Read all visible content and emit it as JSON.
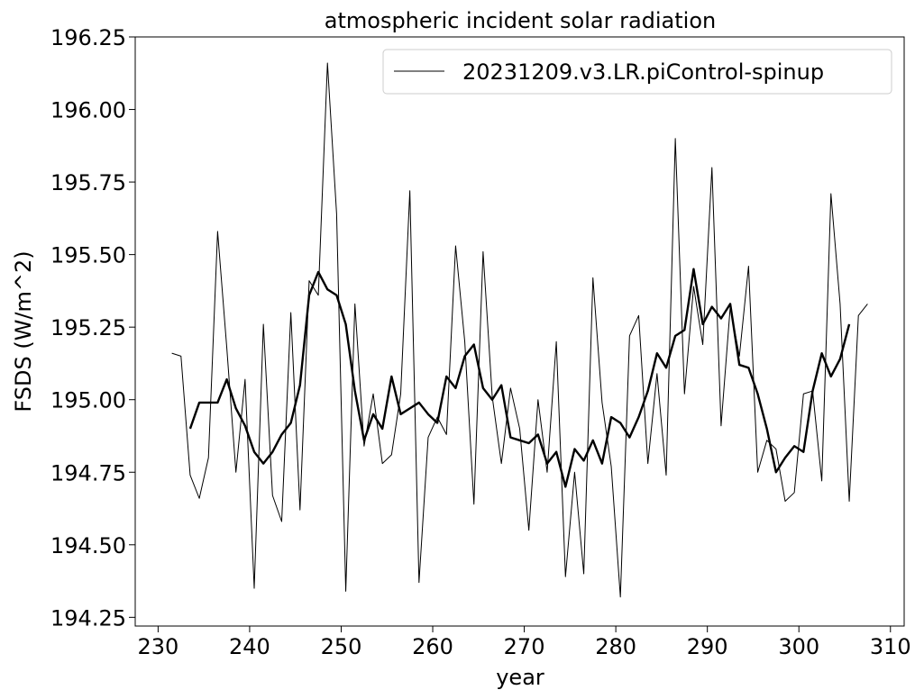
{
  "chart_data": {
    "type": "line",
    "title": "atmospheric incident solar radiation",
    "xlabel": "year",
    "ylabel": "FSDS (W/m^2)",
    "xlim": [
      227.5,
      311.5
    ],
    "ylim": [
      194.22,
      196.25
    ],
    "xticks": [
      230,
      240,
      250,
      260,
      270,
      280,
      290,
      300,
      310
    ],
    "yticks": [
      194.25,
      194.5,
      194.75,
      195.0,
      195.25,
      195.5,
      195.75,
      196.0,
      196.25
    ],
    "ytick_labels": [
      "194.25",
      "194.50",
      "194.75",
      "195.00",
      "195.25",
      "195.50",
      "195.75",
      "196.00",
      "196.25"
    ],
    "grid": false,
    "legend_position": "top-right",
    "legend": [
      "20231209.v3.LR.piControl-spinup"
    ],
    "series": [
      {
        "name": "20231209.v3.LR.piControl-spinup",
        "style": "thin",
        "color": "#000000",
        "x": [
          231.5,
          232.5,
          233.5,
          234.5,
          235.5,
          236.5,
          237.5,
          238.5,
          239.5,
          240.5,
          241.5,
          242.5,
          243.5,
          244.5,
          245.5,
          246.5,
          247.5,
          248.5,
          249.5,
          250.5,
          251.5,
          252.5,
          253.5,
          254.5,
          255.5,
          256.5,
          257.5,
          258.5,
          259.5,
          260.5,
          261.5,
          262.5,
          263.5,
          264.5,
          265.5,
          266.5,
          267.5,
          268.5,
          269.5,
          270.5,
          271.5,
          272.5,
          273.5,
          274.5,
          275.5,
          276.5,
          277.5,
          278.5,
          279.5,
          280.5,
          281.5,
          282.5,
          283.5,
          284.5,
          285.5,
          286.5,
          287.5,
          288.5,
          289.5,
          290.5,
          291.5,
          292.5,
          293.5,
          294.5,
          295.5,
          296.5,
          297.5,
          298.5,
          299.5,
          300.5,
          301.5,
          302.5,
          303.5,
          304.5,
          305.5,
          306.5,
          307.5
        ],
        "y": [
          195.16,
          195.15,
          194.74,
          194.66,
          194.8,
          195.58,
          195.18,
          194.75,
          195.07,
          194.35,
          195.26,
          194.67,
          194.58,
          195.3,
          194.62,
          195.41,
          195.36,
          196.16,
          195.64,
          194.34,
          195.33,
          194.84,
          195.02,
          194.78,
          194.81,
          195.02,
          195.72,
          194.37,
          194.87,
          194.94,
          194.88,
          195.53,
          195.2,
          194.64,
          195.51,
          195.01,
          194.78,
          195.04,
          194.9,
          194.55,
          195.0,
          194.75,
          195.2,
          194.39,
          194.75,
          194.4,
          195.42,
          194.99,
          194.77,
          194.32,
          195.22,
          195.29,
          194.78,
          195.09,
          194.74,
          195.9,
          195.02,
          195.39,
          195.19,
          195.8,
          194.91,
          195.32,
          195.15,
          195.46,
          194.75,
          194.86,
          194.83,
          194.65,
          194.68,
          195.02,
          195.03,
          194.72,
          195.71,
          195.33,
          194.65,
          195.29,
          195.33
        ]
      },
      {
        "name": "",
        "style": "thick",
        "color": "#000000",
        "x": [
          233.5,
          234.5,
          235.5,
          236.5,
          237.5,
          238.5,
          239.5,
          240.5,
          241.5,
          242.5,
          243.5,
          244.5,
          245.5,
          246.5,
          247.5,
          248.5,
          249.5,
          250.5,
          251.5,
          252.5,
          253.5,
          254.5,
          255.5,
          256.5,
          257.5,
          258.5,
          259.5,
          260.5,
          261.5,
          262.5,
          263.5,
          264.5,
          265.5,
          266.5,
          267.5,
          268.5,
          269.5,
          270.5,
          271.5,
          272.5,
          273.5,
          274.5,
          275.5,
          276.5,
          277.5,
          278.5,
          279.5,
          280.5,
          281.5,
          282.5,
          283.5,
          284.5,
          285.5,
          286.5,
          287.5,
          288.5,
          289.5,
          290.5,
          291.5,
          292.5,
          293.5,
          294.5,
          295.5,
          296.5,
          297.5,
          298.5,
          299.5,
          300.5,
          301.5,
          302.5,
          303.5,
          304.5,
          305.5
        ],
        "y": [
          194.9,
          194.99,
          194.99,
          194.99,
          195.07,
          194.97,
          194.91,
          194.82,
          194.78,
          194.82,
          194.88,
          194.92,
          195.05,
          195.36,
          195.44,
          195.38,
          195.36,
          195.26,
          195.03,
          194.86,
          194.95,
          194.9,
          195.08,
          194.95,
          194.97,
          194.99,
          194.95,
          194.92,
          195.08,
          195.04,
          195.15,
          195.19,
          195.04,
          195.0,
          195.05,
          194.87,
          194.86,
          194.85,
          194.88,
          194.78,
          194.82,
          194.7,
          194.83,
          194.79,
          194.86,
          194.78,
          194.94,
          194.92,
          194.87,
          194.94,
          195.03,
          195.16,
          195.11,
          195.22,
          195.24,
          195.45,
          195.26,
          195.32,
          195.28,
          195.33,
          195.12,
          195.11,
          195.02,
          194.9,
          194.75,
          194.8,
          194.84,
          194.82,
          195.03,
          195.16,
          195.08,
          195.14,
          195.26
        ]
      }
    ]
  }
}
